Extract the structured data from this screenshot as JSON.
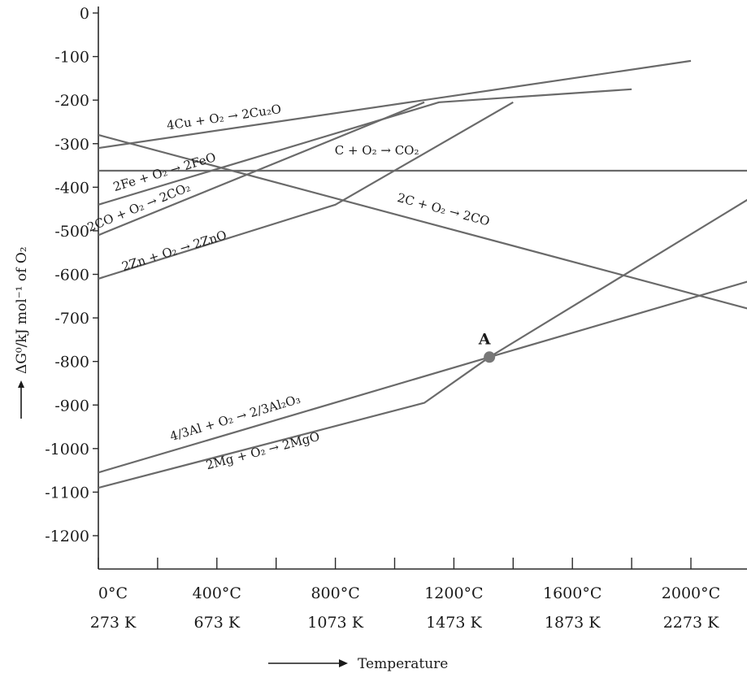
{
  "chart_data": {
    "type": "line",
    "xlabel": "Temperature",
    "ylabel": "ΔG⁰/kJ mol⁻¹ of O₂",
    "xlim": [
      0,
      2200
    ],
    "ylim": [
      -1300,
      0
    ],
    "yticks": [
      0,
      -100,
      -200,
      -300,
      -400,
      -500,
      -600,
      -700,
      -800,
      -900,
      -1000,
      -1100,
      -1200
    ],
    "ytick_labels": [
      "0",
      "-100",
      "-200",
      "-300",
      "-400",
      "-500",
      "-600",
      "-700",
      "-800",
      "-900",
      "-1000",
      "-1100",
      "-1200"
    ],
    "xticks": [
      0,
      200,
      400,
      600,
      800,
      1000,
      1200,
      1400,
      1600,
      1800,
      2000
    ],
    "xtick_labels": [
      {
        "x": 0,
        "celsius": "0°C",
        "kelvin": "273 K"
      },
      {
        "x": 400,
        "celsius": "400°C",
        "kelvin": "673 K"
      },
      {
        "x": 800,
        "celsius": "800°C",
        "kelvin": "1073 K"
      },
      {
        "x": 1200,
        "celsius": "1200°C",
        "kelvin": "1473 K"
      },
      {
        "x": 1600,
        "celsius": "1600°C",
        "kelvin": "1873 K"
      },
      {
        "x": 2000,
        "celsius": "2000°C",
        "kelvin": "2273 K"
      }
    ],
    "series": [
      {
        "name": "4Cu + O₂ → 2Cu₂O",
        "x": [
          0,
          2000
        ],
        "y": [
          -310,
          -110
        ]
      },
      {
        "name": "2Fe + O₂ → 2FeO",
        "x": [
          0,
          1150,
          1800
        ],
        "y": [
          -440,
          -205,
          -175
        ]
      },
      {
        "name": "C + O₂ → CO₂",
        "x": [
          0,
          2200
        ],
        "y": [
          -362,
          -362
        ]
      },
      {
        "name": "2CO + O₂ → 2CO₂",
        "x": [
          0,
          1100
        ],
        "y": [
          -510,
          -205
        ]
      },
      {
        "name": "2C + O₂ → 2CO",
        "x": [
          0,
          2200
        ],
        "y": [
          -280,
          -680
        ]
      },
      {
        "name": "2Zn + O₂ → 2ZnO",
        "x": [
          0,
          800,
          1400
        ],
        "y": [
          -610,
          -440,
          -205
        ]
      },
      {
        "name": "4/3Al + O₂ → 2/3Al₂O₃",
        "x": [
          0,
          1320,
          2200
        ],
        "y": [
          -1055,
          -790,
          -615
        ]
      },
      {
        "name": "2Mg + O₂ → 2MgO",
        "x": [
          0,
          1100,
          1320,
          2200
        ],
        "y": [
          -1090,
          -895,
          -790,
          -425
        ]
      }
    ],
    "annotations": [
      {
        "text": "A",
        "x": 1320,
        "y": -790
      }
    ],
    "grid": false
  }
}
